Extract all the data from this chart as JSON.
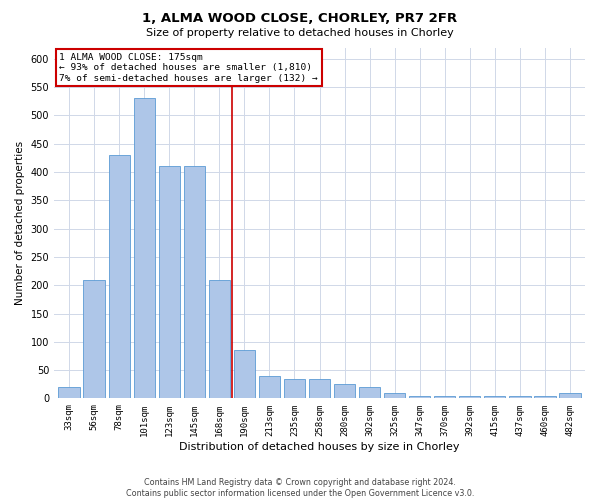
{
  "title": "1, ALMA WOOD CLOSE, CHORLEY, PR7 2FR",
  "subtitle": "Size of property relative to detached houses in Chorley",
  "xlabel": "Distribution of detached houses by size in Chorley",
  "ylabel": "Number of detached properties",
  "footer_line1": "Contains HM Land Registry data © Crown copyright and database right 2024.",
  "footer_line2": "Contains public sector information licensed under the Open Government Licence v3.0.",
  "bar_color": "#aec6e8",
  "bar_edge_color": "#5b9bd5",
  "red_line_color": "#cc0000",
  "background_color": "#ffffff",
  "grid_color": "#d0d8e8",
  "annotation_box_color": "#cc0000",
  "annotation_line1": "1 ALMA WOOD CLOSE: 175sqm",
  "annotation_line2": "← 93% of detached houses are smaller (1,810)",
  "annotation_line3": "7% of semi-detached houses are larger (132) →",
  "categories": [
    "33sqm",
    "56sqm",
    "78sqm",
    "101sqm",
    "123sqm",
    "145sqm",
    "168sqm",
    "190sqm",
    "213sqm",
    "235sqm",
    "258sqm",
    "280sqm",
    "302sqm",
    "325sqm",
    "347sqm",
    "370sqm",
    "392sqm",
    "415sqm",
    "437sqm",
    "460sqm",
    "482sqm"
  ],
  "values": [
    20,
    210,
    430,
    530,
    410,
    410,
    210,
    85,
    40,
    35,
    35,
    25,
    20,
    10,
    5,
    5,
    5,
    5,
    5,
    5,
    10
  ],
  "ylim": [
    0,
    620
  ],
  "yticks": [
    0,
    50,
    100,
    150,
    200,
    250,
    300,
    350,
    400,
    450,
    500,
    550,
    600
  ],
  "bar_width": 0.85,
  "title_fontsize": 9.5,
  "subtitle_fontsize": 8,
  "xlabel_fontsize": 8,
  "ylabel_fontsize": 7.5,
  "tick_fontsize": 6.5,
  "ytick_fontsize": 7,
  "annotation_fontsize": 6.8,
  "footer_fontsize": 5.8
}
